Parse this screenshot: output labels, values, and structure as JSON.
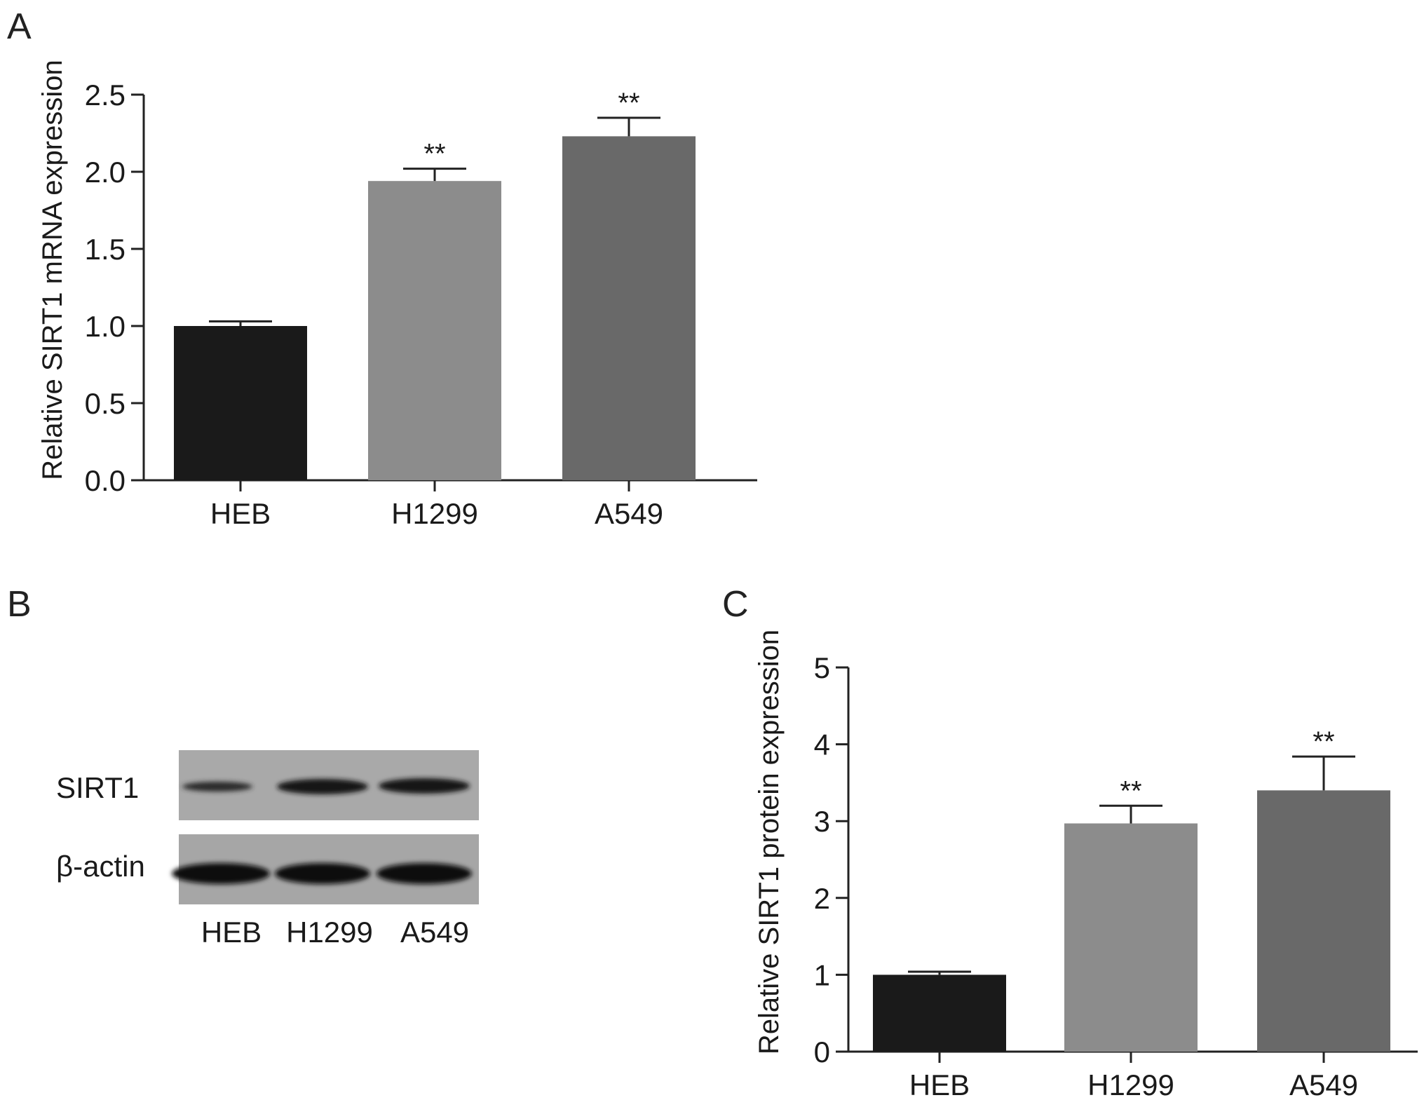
{
  "panels": {
    "a": "A",
    "b": "B",
    "c": "C"
  },
  "chart_data": [
    {
      "panel": "A",
      "type": "bar",
      "categories": [
        "HEB",
        "H1299",
        "A549"
      ],
      "values": [
        1.0,
        1.94,
        2.23
      ],
      "errors": [
        0.03,
        0.08,
        0.12
      ],
      "significance": [
        "",
        "**",
        "**"
      ],
      "ylabel": "Relative SIRT1 mRNA expression",
      "ylim": [
        0,
        2.5
      ],
      "yticks": [
        "0.0",
        "0.5",
        "1.0",
        "1.5",
        "2.0",
        "2.5"
      ],
      "colors": [
        "#1a1a1a",
        "#8c8c8c",
        "#696969"
      ]
    },
    {
      "panel": "C",
      "type": "bar",
      "categories": [
        "HEB",
        "H1299",
        "A549"
      ],
      "values": [
        1.0,
        2.97,
        3.4
      ],
      "errors": [
        0.04,
        0.23,
        0.44
      ],
      "significance": [
        "",
        "**",
        "**"
      ],
      "ylabel": "Relative SIRT1 protein expression",
      "ylim": [
        0,
        5
      ],
      "yticks": [
        "0",
        "1",
        "2",
        "3",
        "4",
        "5"
      ],
      "colors": [
        "#1a1a1a",
        "#8c8c8c",
        "#696969"
      ]
    }
  ],
  "blot": {
    "rows": [
      "SIRT1",
      "β-actin"
    ],
    "lanes": [
      "HEB",
      "H1299",
      "A549"
    ]
  }
}
